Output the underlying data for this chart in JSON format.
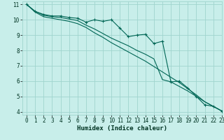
{
  "xlabel": "Humidex (Indice chaleur)",
  "bg_color": "#c8eeea",
  "grid_color": "#a0d4ce",
  "line_color": "#006655",
  "xlim": [
    -0.5,
    23
  ],
  "ylim": [
    3.8,
    11.2
  ],
  "yticks": [
    4,
    5,
    6,
    7,
    8,
    9,
    10,
    11
  ],
  "xticks": [
    0,
    1,
    2,
    3,
    4,
    5,
    6,
    7,
    8,
    9,
    10,
    11,
    12,
    13,
    14,
    15,
    16,
    17,
    18,
    19,
    20,
    21,
    22,
    23
  ],
  "series1_x": [
    0,
    1,
    2,
    3,
    4,
    5,
    6,
    7,
    8,
    9,
    10,
    11,
    12,
    13,
    14,
    15,
    16,
    17,
    18,
    19,
    20,
    21,
    22,
    23
  ],
  "series1_y": [
    11.0,
    10.55,
    10.35,
    10.25,
    10.25,
    10.15,
    10.1,
    9.85,
    10.0,
    9.9,
    10.0,
    9.45,
    8.9,
    9.0,
    9.05,
    8.45,
    8.6,
    5.95,
    6.0,
    5.55,
    5.0,
    4.45,
    4.35,
    4.05
  ],
  "series2_x": [
    0,
    1,
    2,
    3,
    4,
    5,
    6,
    7,
    8,
    9,
    10,
    11,
    12,
    13,
    14,
    15,
    16,
    17,
    18,
    19,
    20,
    21,
    22,
    23
  ],
  "series2_y": [
    11.0,
    10.55,
    10.3,
    10.2,
    10.15,
    10.05,
    9.95,
    9.65,
    9.4,
    9.1,
    8.8,
    8.55,
    8.3,
    8.0,
    7.75,
    7.45,
    6.1,
    5.95,
    5.65,
    5.35,
    5.0,
    4.65,
    4.35,
    4.05
  ],
  "series3_x": [
    0,
    1,
    2,
    3,
    4,
    5,
    6,
    7,
    8,
    9,
    10,
    11,
    12,
    13,
    14,
    15,
    16,
    17,
    18,
    19,
    20,
    21,
    22,
    23
  ],
  "series3_y": [
    11.0,
    10.5,
    10.2,
    10.1,
    10.0,
    9.9,
    9.75,
    9.5,
    9.15,
    8.85,
    8.5,
    8.2,
    7.9,
    7.6,
    7.3,
    6.95,
    6.6,
    6.25,
    5.9,
    5.5,
    5.1,
    4.65,
    4.35,
    4.05
  ],
  "xlabel_fontsize": 6.5,
  "tick_fontsize": 5.5
}
